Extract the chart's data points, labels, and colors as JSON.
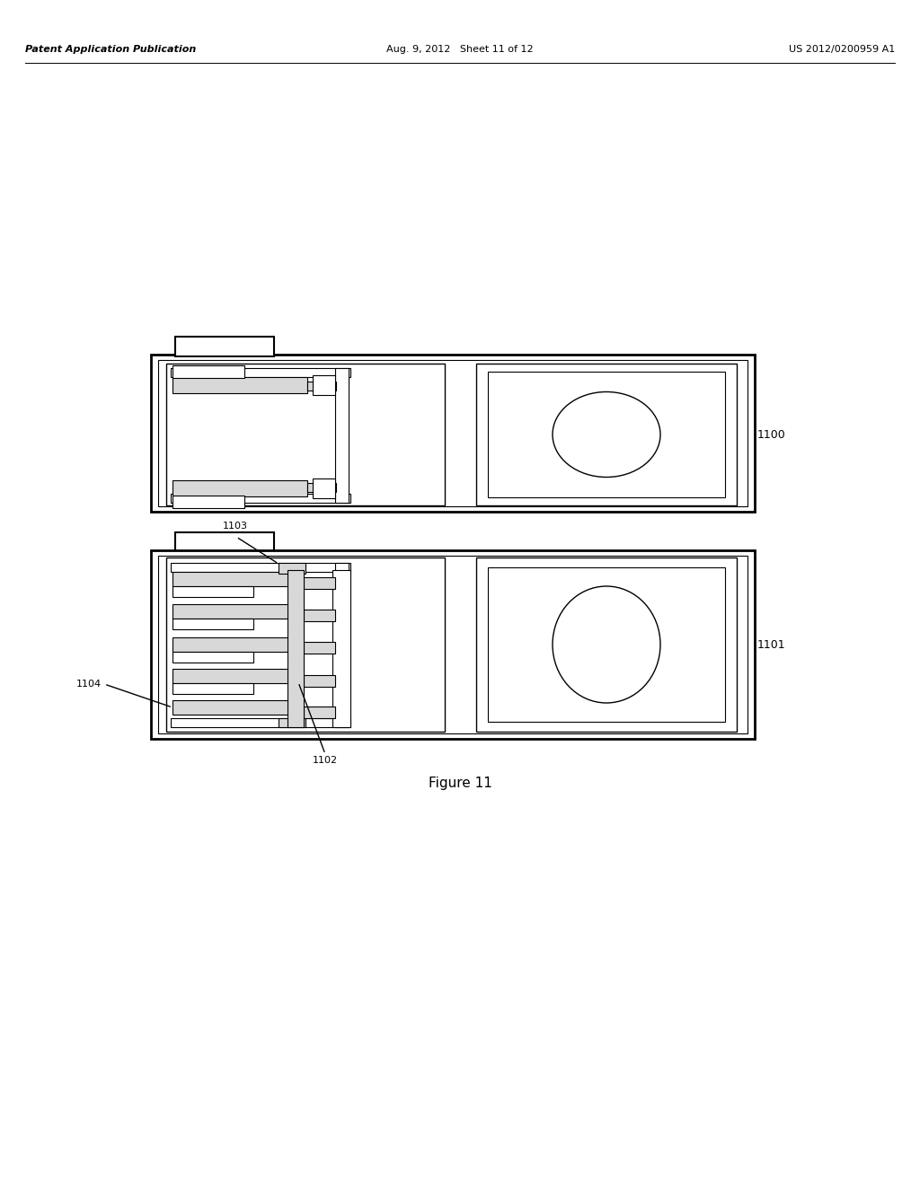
{
  "background_color": "#ffffff",
  "header_left": "Patent Application Publication",
  "header_mid": "Aug. 9, 2012   Sheet 11 of 12",
  "header_right": "US 2012/0200959 A1",
  "figure_caption": "Figure 11",
  "label_1100": "1100",
  "label_1101": "1101",
  "label_1102": "1102",
  "label_1103": "1103",
  "label_1104": "1104",
  "line_color": "#000000",
  "gray_fill": "#c8c8c8",
  "light_gray": "#d8d8d8",
  "white_fill": "#ffffff"
}
